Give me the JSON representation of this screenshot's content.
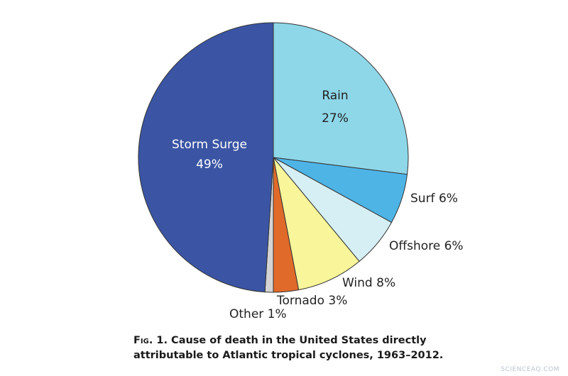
{
  "chart_data": {
    "type": "pie",
    "slices": [
      {
        "label": "Rain",
        "value": 27,
        "pct_text": "27%",
        "color": "#8ed7e8",
        "label_color": "#222222"
      },
      {
        "label": "Surf",
        "value": 6,
        "pct_text": "6%",
        "color": "#4eb4e6",
        "label_color": "#222222"
      },
      {
        "label": "Offshore",
        "value": 6,
        "pct_text": "6%",
        "color": "#d6eff5",
        "label_color": "#222222"
      },
      {
        "label": "Wind",
        "value": 8,
        "pct_text": "8%",
        "color": "#f8f59a",
        "label_color": "#222222"
      },
      {
        "label": "Tornado",
        "value": 3,
        "pct_text": "3%",
        "color": "#e06a2a",
        "label_color": "#222222"
      },
      {
        "label": "Other",
        "value": 1,
        "pct_text": "1%",
        "color": "#d4d4d4",
        "label_color": "#222222"
      },
      {
        "label": "Storm Surge",
        "value": 49,
        "pct_text": "49%",
        "color": "#3b55a4",
        "label_color": "#ffffff"
      }
    ],
    "start_angle_deg": 0,
    "direction": "clockwise",
    "edge_color": "#333333"
  },
  "caption": {
    "fig_label": "Fig. 1.",
    "text": " Cause of death in the United States directly attributable to Atlantic tropical cyclones, 1963–2012."
  },
  "watermark": "SCIENCEAQ.COM"
}
